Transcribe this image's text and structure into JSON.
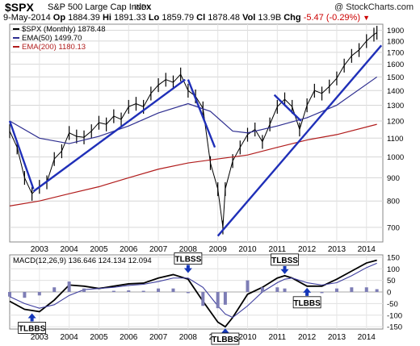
{
  "header": {
    "ticker": "$SPX",
    "name": "S&P 500 Large Cap Index",
    "exchange": "INDX",
    "copyright": "@ StockCharts.com",
    "date": "9-May-2014",
    "open_label": "Op",
    "open": "1884.39",
    "high_label": "Hi",
    "high": "1891.33",
    "low_label": "Lo",
    "low": "1859.79",
    "close_label": "Cl",
    "close": "1878.48",
    "volume_label": "Vol",
    "volume": "13.9B",
    "change_label": "Chg",
    "change": "-5.47 (-0.29%)",
    "triangle_icon": "down-triangle-icon"
  },
  "colors": {
    "price": "#000000",
    "ema50": "#2e2e90",
    "ema200": "#b11c1c",
    "trendline": "#1f2fb8",
    "macd": "#000000",
    "signal": "#3d3d9e",
    "histogram": "#7d7db5",
    "arrow": "#1436b8",
    "change_negative": "#cc0000"
  },
  "chart_data": [
    {
      "type": "line",
      "legend": [
        {
          "label": "$SPX (Monthly)",
          "value": "1878.48"
        },
        {
          "label": "EMA(50)",
          "value": "1499.70"
        },
        {
          "label": "EMA(200)",
          "value": "1180.13"
        }
      ],
      "y_scale": "log",
      "ylim": [
        650,
        1960
      ],
      "xlim": [
        2002.0,
        2014.55
      ],
      "y_ticks": [
        700,
        800,
        900,
        1000,
        1100,
        1200,
        1300,
        1400,
        1500,
        1600,
        1700,
        1800,
        1900
      ],
      "x_ticks": [
        2003,
        2004,
        2005,
        2006,
        2007,
        2008,
        2009,
        2010,
        2011,
        2012,
        2013,
        2014
      ],
      "x_tick_labels": [
        "2003",
        "2004",
        "2005",
        "2006",
        "2007",
        "2008",
        "2009",
        "2010",
        "2011",
        "2012",
        "2013",
        "2014"
      ],
      "series": [
        {
          "name": "$SPX (Monthly)",
          "style": "ohlc",
          "x": [
            2002.0,
            2002.25,
            2002.5,
            2002.75,
            2003.0,
            2003.25,
            2003.5,
            2003.75,
            2004.0,
            2004.25,
            2004.5,
            2004.75,
            2005.0,
            2005.25,
            2005.5,
            2005.75,
            2006.0,
            2006.25,
            2006.5,
            2006.75,
            2007.0,
            2007.25,
            2007.5,
            2007.75,
            2008.0,
            2008.25,
            2008.5,
            2008.75,
            2009.0,
            2009.17,
            2009.25,
            2009.5,
            2009.75,
            2010.0,
            2010.25,
            2010.5,
            2010.75,
            2011.0,
            2011.25,
            2011.5,
            2011.75,
            2012.0,
            2012.25,
            2012.5,
            2012.75,
            2013.0,
            2013.25,
            2013.5,
            2013.75,
            2014.0,
            2014.25,
            2014.35
          ],
          "y": [
            1140,
            1050,
            900,
            830,
            860,
            880,
            990,
            1030,
            1130,
            1110,
            1105,
            1140,
            1190,
            1180,
            1230,
            1210,
            1290,
            1310,
            1290,
            1380,
            1440,
            1480,
            1460,
            1520,
            1400,
            1360,
            1280,
            970,
            850,
            700,
            850,
            980,
            1050,
            1120,
            1150,
            1080,
            1180,
            1290,
            1340,
            1290,
            1150,
            1300,
            1400,
            1380,
            1430,
            1490,
            1590,
            1670,
            1720,
            1800,
            1860,
            1878
          ]
        },
        {
          "name": "EMA(50)",
          "x": [
            2002.0,
            2003.0,
            2004.0,
            2005.0,
            2006.0,
            2007.0,
            2008.0,
            2008.75,
            2009.5,
            2010.0,
            2011.0,
            2012.0,
            2013.0,
            2014.35
          ],
          "y": [
            1200,
            1100,
            1070,
            1110,
            1170,
            1250,
            1310,
            1260,
            1140,
            1130,
            1170,
            1220,
            1300,
            1500
          ]
        },
        {
          "name": "EMA(200)",
          "x": [
            2002.0,
            2003.0,
            2004.0,
            2005.0,
            2006.0,
            2007.0,
            2008.0,
            2009.0,
            2010.0,
            2011.0,
            2012.0,
            2013.0,
            2014.35
          ],
          "y": [
            780,
            800,
            830,
            860,
            900,
            940,
            970,
            990,
            1010,
            1050,
            1090,
            1120,
            1180
          ]
        },
        {
          "name": "trendline-1",
          "style": "trendline",
          "x": [
            2002.0,
            2002.8
          ],
          "y": [
            1200,
            850
          ]
        },
        {
          "name": "trendline-2",
          "style": "trendline",
          "x": [
            2002.8,
            2007.9
          ],
          "y": [
            840,
            1480
          ]
        },
        {
          "name": "trendline-3",
          "style": "trendline",
          "x": [
            2008.0,
            2008.9
          ],
          "y": [
            1480,
            1050
          ]
        },
        {
          "name": "trendline-4",
          "style": "trendline",
          "x": [
            2009.0,
            2014.5
          ],
          "y": [
            670,
            1760
          ]
        },
        {
          "name": "trendline-5",
          "style": "trendline",
          "x": [
            2010.9,
            2011.8
          ],
          "y": [
            1370,
            1200
          ]
        }
      ]
    },
    {
      "type": "line",
      "legend_label": "MACD(12,26,9)",
      "legend_values": [
        "136.646",
        "124.134",
        "12.094"
      ],
      "ylim": [
        -160,
        160
      ],
      "xlim": [
        2002.0,
        2014.55
      ],
      "y_ticks": [
        -150,
        -100,
        -50,
        0,
        50,
        100,
        150
      ],
      "x_ticks": [
        2003,
        2004,
        2005,
        2006,
        2007,
        2008,
        2009,
        2010,
        2011,
        2012,
        2013,
        2014
      ],
      "x_tick_labels": [
        "2003",
        "2004",
        "2005",
        "2006",
        "2007",
        "2008",
        "2009",
        "2010",
        "2011",
        "2012",
        "2013",
        "2014"
      ],
      "series": [
        {
          "name": "MACD",
          "x": [
            2002.0,
            2002.5,
            2003.0,
            2003.5,
            2004.0,
            2004.5,
            2005.0,
            2005.5,
            2006.0,
            2006.5,
            2007.0,
            2007.5,
            2008.0,
            2008.5,
            2009.0,
            2009.25,
            2009.5,
            2010.0,
            2010.5,
            2011.0,
            2011.25,
            2011.5,
            2012.0,
            2012.5,
            2013.0,
            2013.5,
            2014.0,
            2014.35
          ],
          "y": [
            -40,
            -75,
            -85,
            -35,
            30,
            25,
            15,
            25,
            35,
            38,
            60,
            75,
            55,
            -40,
            -130,
            -150,
            -110,
            -10,
            20,
            60,
            70,
            60,
            25,
            25,
            55,
            90,
            125,
            137
          ]
        },
        {
          "name": "Signal",
          "x": [
            2002.0,
            2002.5,
            2003.0,
            2003.5,
            2004.0,
            2004.5,
            2005.0,
            2005.5,
            2006.0,
            2006.5,
            2007.0,
            2007.5,
            2008.0,
            2008.5,
            2009.0,
            2009.25,
            2009.5,
            2010.0,
            2010.5,
            2011.0,
            2011.25,
            2011.5,
            2012.0,
            2012.5,
            2013.0,
            2013.5,
            2014.0,
            2014.35
          ],
          "y": [
            -20,
            -50,
            -70,
            -55,
            -15,
            10,
            15,
            20,
            28,
            33,
            45,
            60,
            60,
            20,
            -60,
            -95,
            -110,
            -60,
            0,
            40,
            55,
            60,
            40,
            30,
            40,
            70,
            105,
            124
          ]
        },
        {
          "name": "Histogram",
          "style": "bar",
          "x": [
            2002.0,
            2002.5,
            2003.0,
            2003.5,
            2004.0,
            2004.5,
            2005.0,
            2005.5,
            2006.0,
            2006.5,
            2007.0,
            2007.5,
            2008.0,
            2008.5,
            2009.0,
            2009.25,
            2009.5,
            2010.0,
            2010.5,
            2011.0,
            2011.25,
            2011.5,
            2012.0,
            2012.5,
            2013.0,
            2013.5,
            2014.0,
            2014.35
          ],
          "y": [
            -20,
            -25,
            -15,
            20,
            45,
            15,
            0,
            5,
            7,
            5,
            15,
            15,
            -5,
            -60,
            -70,
            -55,
            0,
            50,
            20,
            20,
            15,
            0,
            -15,
            -5,
            15,
            20,
            20,
            12
          ]
        }
      ],
      "annotations": [
        {
          "label": "TLBBS",
          "x": 2002.75,
          "y": -85,
          "arrow": "up"
        },
        {
          "label": "TLBSS",
          "x": 2008.0,
          "y": 75,
          "arrow": "down"
        },
        {
          "label": "TLBBS",
          "x": 2009.25,
          "y": -150,
          "arrow": "up"
        },
        {
          "label": "TLBSS",
          "x": 2011.25,
          "y": 70,
          "arrow": "down"
        },
        {
          "label": "TLBBS",
          "x": 2012.0,
          "y": 25,
          "arrow": "up"
        }
      ]
    }
  ]
}
